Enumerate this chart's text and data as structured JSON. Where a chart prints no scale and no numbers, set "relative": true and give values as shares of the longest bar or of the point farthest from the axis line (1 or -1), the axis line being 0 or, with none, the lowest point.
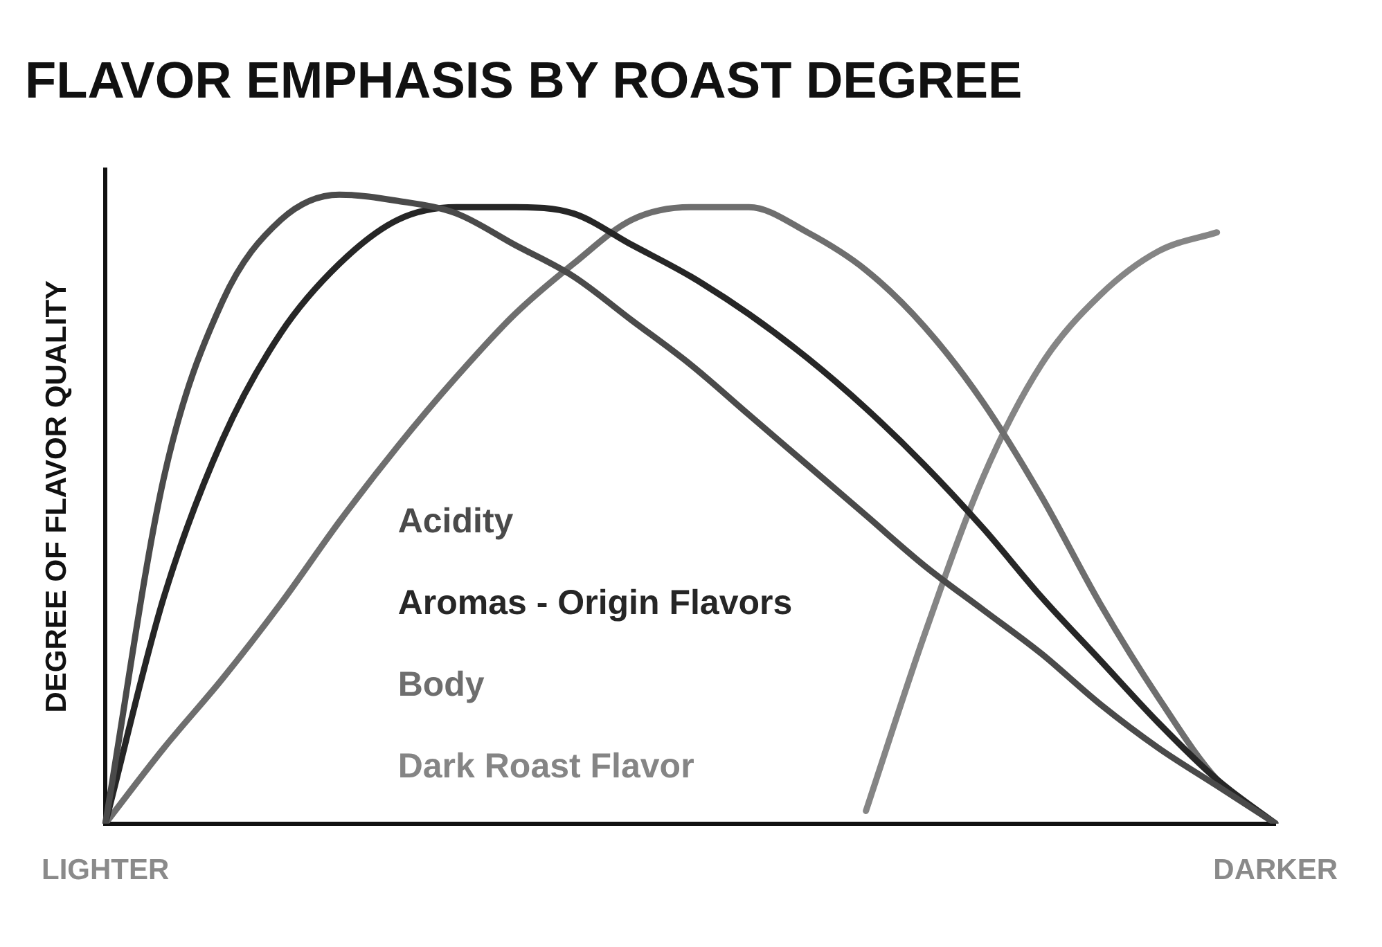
{
  "chart_data": {
    "type": "line",
    "title": "FLAVOR EMPHASIS BY ROAST DEGREE",
    "ylabel": "DEGREE OF FLAVOR QUALITY",
    "relative": true,
    "legend": "bottom left",
    "grid": false,
    "marker": "none",
    "line_style": "solid",
    "categories": [
      "LIGHTER",
      null,
      null,
      null,
      null,
      null,
      null,
      null,
      null,
      null,
      null,
      null,
      null,
      null,
      null,
      null,
      null,
      null,
      null,
      null,
      "DARKER"
    ],
    "series": [
      {
        "name": "Acidity",
        "color": "#4a4a4a",
        "values": [
          0,
          0.55,
          0.83,
          0.96,
          1.0,
          0.99,
          0.97,
          0.92,
          0.87,
          0.8,
          0.73,
          0.65,
          0.57,
          0.49,
          0.41,
          0.34,
          0.27,
          0.19,
          0.12,
          0.06,
          0
        ]
      },
      {
        "name": "Aromas - Origin Flavors",
        "color": "#262626",
        "values": [
          0,
          0.36,
          0.61,
          0.78,
          0.89,
          0.96,
          0.98,
          0.98,
          0.97,
          0.92,
          0.87,
          0.81,
          0.74,
          0.66,
          0.57,
          0.47,
          0.36,
          0.26,
          0.16,
          0.07,
          0
        ]
      },
      {
        "name": "Body",
        "color": "#6e6e6e",
        "values": [
          0,
          0.12,
          0.23,
          0.35,
          0.48,
          0.6,
          0.71,
          0.81,
          0.89,
          0.96,
          0.98,
          0.98,
          0.94,
          0.88,
          0.79,
          0.67,
          0.52,
          0.35,
          0.2,
          0.07,
          0
        ]
      },
      {
        "name": "Dark Roast Flavor",
        "color": "#858585",
        "values": [
          null,
          null,
          null,
          null,
          null,
          null,
          null,
          null,
          null,
          null,
          null,
          null,
          null,
          0.02,
          0.3,
          0.55,
          0.73,
          0.84,
          0.91,
          0.94,
          null
        ]
      }
    ]
  }
}
